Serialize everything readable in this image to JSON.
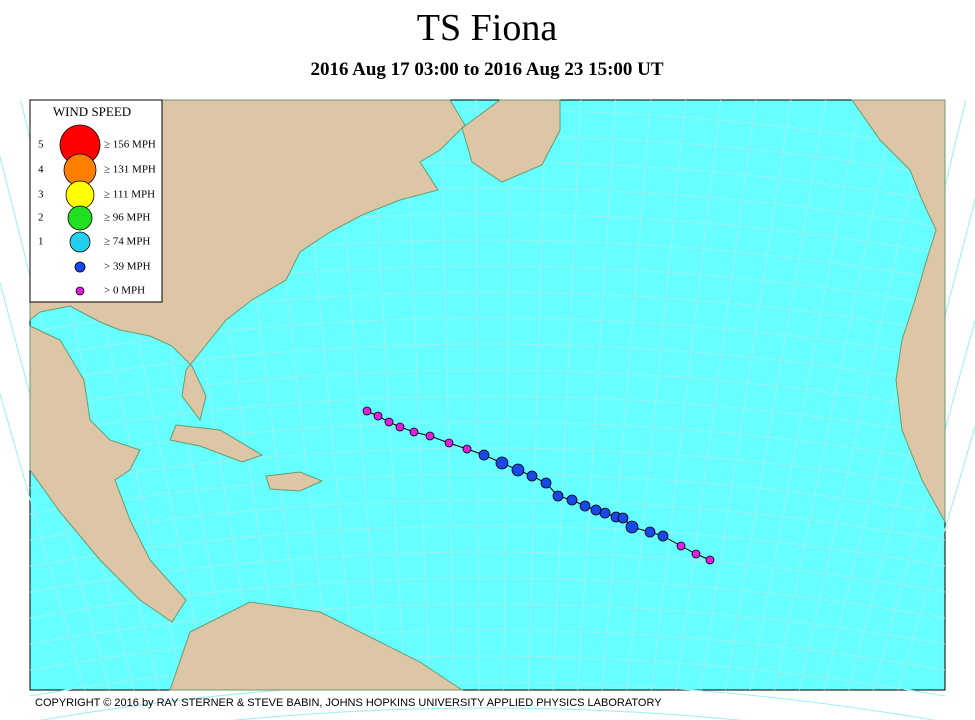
{
  "header": {
    "title": "TS Fiona",
    "subtitle": "2016 Aug 17 03:00 to 2016 Aug 23 15:00 UT"
  },
  "legend": {
    "title": "WIND SPEED",
    "items": [
      {
        "category": "5",
        "label": "≥ 156 MPH"
      },
      {
        "category": "4",
        "label": "≥ 131 MPH"
      },
      {
        "category": "3",
        "label": "≥ 111 MPH"
      },
      {
        "category": "2",
        "label": "≥ 96 MPH"
      },
      {
        "category": "1",
        "label": "≥ 74 MPH"
      },
      {
        "label": "> 39 MPH"
      },
      {
        "label": "> 0 MPH"
      }
    ]
  },
  "footer": {
    "copyright": "COPYRIGHT © 2016 by RAY STERNER & STEVE BABIN, JOHNS HOPKINS UNIVERSITY APPLIED PHYSICS LABORATORY"
  }
}
